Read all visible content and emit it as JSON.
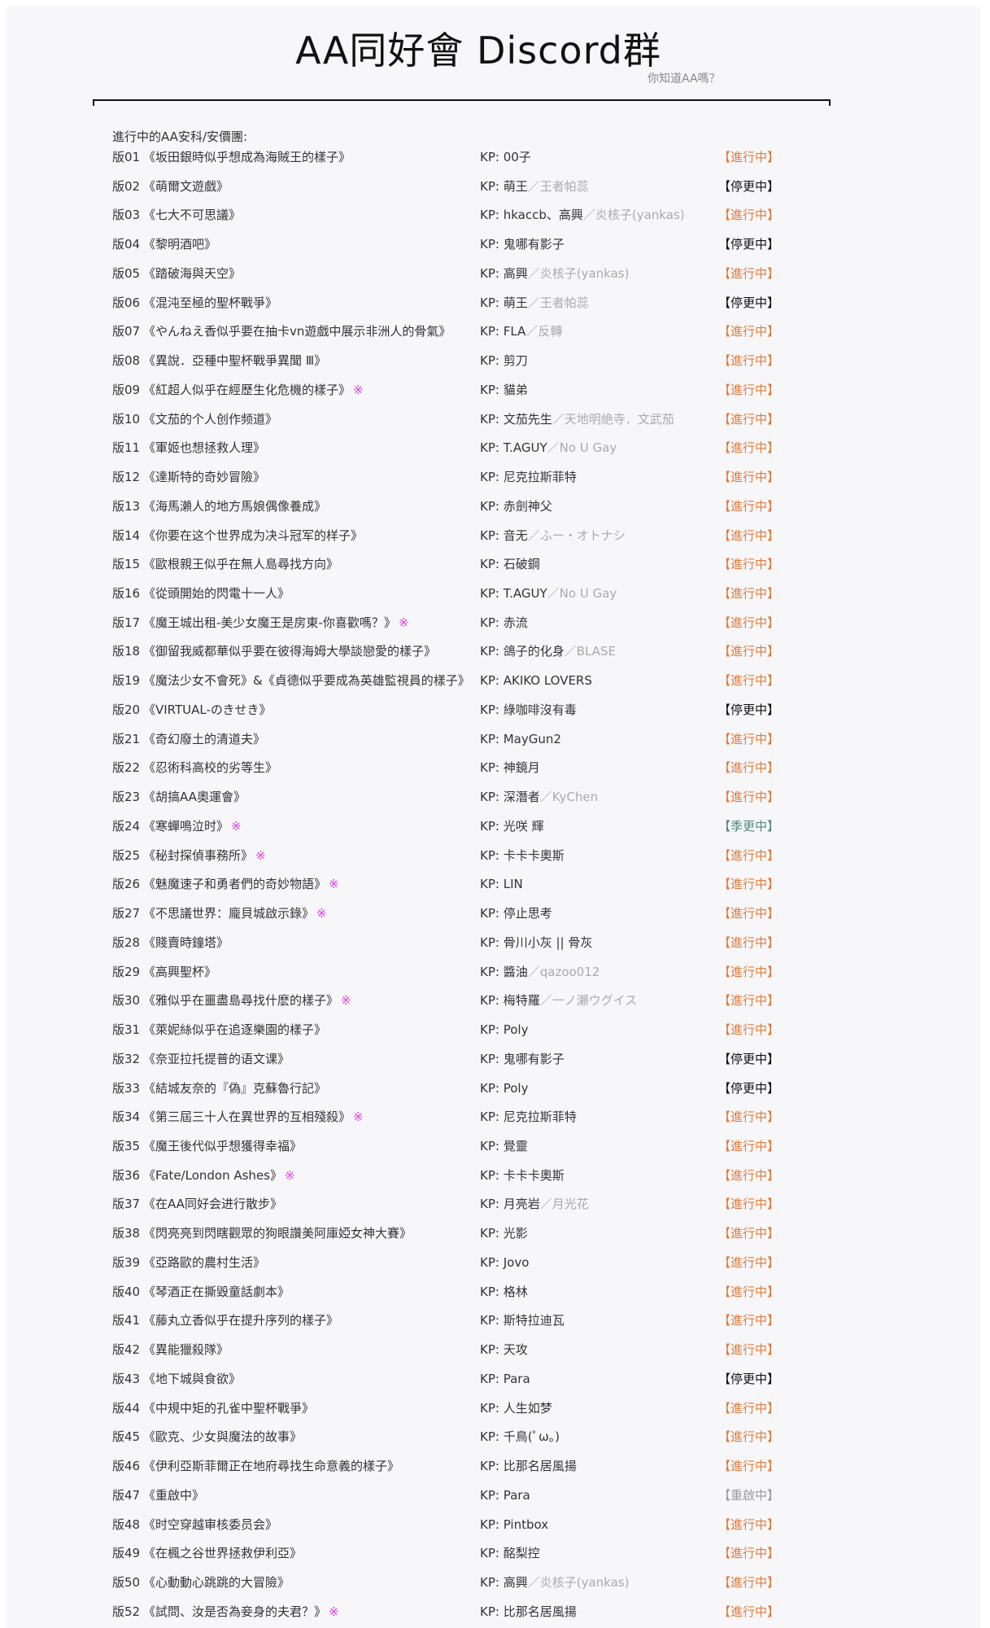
{
  "header": {
    "title": "AA同好會 Discord群",
    "subtitle": "你知道AA嗎？"
  },
  "section_label": "進行中的AA安科/安價團:",
  "kp_prefix": "KP: ",
  "status_colors": {
    "進行中": "#e27a3a",
    "停更中": "#111111",
    "季更中": "#4f8a78",
    "重啟中": "#999999"
  },
  "mark_icon": "reference-mark",
  "rows": [
    {
      "num": "版01",
      "title": "《坂田銀時似乎想成為海賊王的樣子》",
      "mark": "",
      "kp": "00子",
      "kp_alt": "",
      "status": "【進行中】",
      "status_key": "進行中"
    },
    {
      "num": "版02",
      "title": "《萌爾文遊戲》",
      "mark": "",
      "kp": "萌王",
      "kp_alt": "／王者帕蕊",
      "status": "【停更中】",
      "status_key": "停更中"
    },
    {
      "num": "版03",
      "title": "《七大不可思議》",
      "mark": "",
      "kp": "hkaccb、高興",
      "kp_alt": "／炎核子(yankas)",
      "status": "【進行中】",
      "status_key": "進行中"
    },
    {
      "num": "版04",
      "title": "《黎明酒吧》",
      "mark": "",
      "kp": "鬼哪有影子",
      "kp_alt": "",
      "status": "【停更中】",
      "status_key": "停更中"
    },
    {
      "num": "版05",
      "title": "《踏破海與天空》",
      "mark": "",
      "kp": "高興",
      "kp_alt": "／炎核子(yankas)",
      "status": "【進行中】",
      "status_key": "進行中"
    },
    {
      "num": "版06",
      "title": "《混沌至極的聖杯戰爭》",
      "mark": "",
      "kp": "萌王",
      "kp_alt": "／王者帕蕊",
      "status": "【停更中】",
      "status_key": "停更中"
    },
    {
      "num": "版07",
      "title": "《やんねえ香似乎要在抽卡vn遊戲中展示非洲人的骨氣》",
      "mark": "",
      "kp": "FLA",
      "kp_alt": "／反轉",
      "status": "【進行中】",
      "status_key": "進行中"
    },
    {
      "num": "版08",
      "title": "《異說．亞種中聖杯戰爭異聞 Ⅲ》",
      "mark": "",
      "kp": "剪刀",
      "kp_alt": "",
      "status": "【進行中】",
      "status_key": "進行中"
    },
    {
      "num": "版09",
      "title": "《紅超人似乎在經歷生化危機的樣子》",
      "mark": "※",
      "kp": "貓弟",
      "kp_alt": "",
      "status": "【進行中】",
      "status_key": "進行中"
    },
    {
      "num": "版10",
      "title": "《文茄的个人创作频道》",
      "mark": "",
      "kp": "文茄先生",
      "kp_alt": "／天地明絶寺．文武茄",
      "status": "【進行中】",
      "status_key": "進行中"
    },
    {
      "num": "版11",
      "title": "《軍姬也想拯救人理》",
      "mark": "",
      "kp": "T.AGUY",
      "kp_alt": "／No U Gay",
      "status": "【進行中】",
      "status_key": "進行中"
    },
    {
      "num": "版12",
      "title": "《達斯特的奇妙冒險》",
      "mark": "",
      "kp": "尼克拉斯菲特",
      "kp_alt": "",
      "status": "【進行中】",
      "status_key": "進行中"
    },
    {
      "num": "版13",
      "title": "《海馬瀨人的地方馬娘偶像養成》",
      "mark": "",
      "kp": "赤劍神父",
      "kp_alt": "",
      "status": "【進行中】",
      "status_key": "進行中"
    },
    {
      "num": "版14",
      "title": "《你要在这个世界成为决斗冠军的样子》",
      "mark": "",
      "kp": "音无",
      "kp_alt": "／ふー・オトナシ",
      "status": "【進行中】",
      "status_key": "進行中"
    },
    {
      "num": "版15",
      "title": "《歐根親王似乎在無人島尋找方向》",
      "mark": "",
      "kp": "石破鋼",
      "kp_alt": "",
      "status": "【進行中】",
      "status_key": "進行中"
    },
    {
      "num": "版16",
      "title": "《從頭開始的閃電十一人》",
      "mark": "",
      "kp": "T.AGUY",
      "kp_alt": "／No U Gay",
      "status": "【進行中】",
      "status_key": "進行中"
    },
    {
      "num": "版17",
      "title": "《魔王城出租-美少女魔王是房東-你喜歡嗎？》",
      "mark": "※",
      "kp": "赤流",
      "kp_alt": "",
      "status": "【進行中】",
      "status_key": "進行中"
    },
    {
      "num": "版18",
      "title": "《御留我威都華似乎要在彼得海姆大學談戀愛的樣子》",
      "mark": "",
      "kp": "鴿子的化身",
      "kp_alt": "／BLASE",
      "status": "【進行中】",
      "status_key": "進行中"
    },
    {
      "num": "版19",
      "title": "《魔法少女不會死》&《貞德似乎要成為英雄監視員的樣子》",
      "mark": "",
      "kp": "AKIKO LOVERS",
      "kp_alt": "",
      "status": "【進行中】",
      "status_key": "進行中"
    },
    {
      "num": "版20",
      "title": "《VIRTUAL-のきせき》",
      "mark": "",
      "kp": "綠咖啡沒有毒",
      "kp_alt": "",
      "status": "【停更中】",
      "status_key": "停更中"
    },
    {
      "num": "版21",
      "title": "《奇幻廢土的清道夫》",
      "mark": "",
      "kp": "MayGun2",
      "kp_alt": "",
      "status": "【進行中】",
      "status_key": "進行中"
    },
    {
      "num": "版22",
      "title": "《忍術科高校的劣等生》",
      "mark": "",
      "kp": "神鏡月",
      "kp_alt": "",
      "status": "【進行中】",
      "status_key": "進行中"
    },
    {
      "num": "版23",
      "title": "《胡搞AA奧運會》",
      "mark": "",
      "kp": "深潛者",
      "kp_alt": "／KyChen",
      "status": "【進行中】",
      "status_key": "進行中"
    },
    {
      "num": "版24",
      "title": "《寒蟬鳴泣时》",
      "mark": "※",
      "kp": "光咲 輝",
      "kp_alt": "",
      "status": "【季更中】",
      "status_key": "季更中"
    },
    {
      "num": "版25",
      "title": "《秘封探偵事務所》",
      "mark": "※",
      "kp": "卡卡卡奧斯",
      "kp_alt": "",
      "status": "【進行中】",
      "status_key": "進行中"
    },
    {
      "num": "版26",
      "title": "《魅魔速子和勇者們的奇妙物語》",
      "mark": "※",
      "kp": "LIN",
      "kp_alt": "",
      "status": "【進行中】",
      "status_key": "進行中"
    },
    {
      "num": "版27",
      "title": "《不思議世界：龐貝城啟示錄》",
      "mark": "※",
      "kp": "停止思考",
      "kp_alt": "",
      "status": "【進行中】",
      "status_key": "進行中"
    },
    {
      "num": "版28",
      "title": "《賤賣時鐘塔》",
      "mark": "",
      "kp": "骨川小灰 || 骨灰",
      "kp_alt": "",
      "status": "【進行中】",
      "status_key": "進行中"
    },
    {
      "num": "版29",
      "title": "《高興聖杯》",
      "mark": "",
      "kp": "醬油",
      "kp_alt": "／qazoo012",
      "status": "【進行中】",
      "status_key": "進行中"
    },
    {
      "num": "版30",
      "title": "《雅似乎在噩盡島尋找什麽的樣子》",
      "mark": "※",
      "kp": "梅特羅",
      "kp_alt": "／一ノ瀬ウグイス",
      "status": "【進行中】",
      "status_key": "進行中"
    },
    {
      "num": "版31",
      "title": "《萊妮絲似乎在追逐樂園的樣子》",
      "mark": "",
      "kp": "Poly",
      "kp_alt": "",
      "status": "【進行中】",
      "status_key": "進行中"
    },
    {
      "num": "版32",
      "title": "《奈亚拉托提普的语文课》",
      "mark": "",
      "kp": "鬼哪有影子",
      "kp_alt": "",
      "status": "【停更中】",
      "status_key": "停更中"
    },
    {
      "num": "版33",
      "title": "《結城友奈的『偽』克蘇魯行記》",
      "mark": "",
      "kp": "Poly",
      "kp_alt": "",
      "status": "【停更中】",
      "status_key": "停更中"
    },
    {
      "num": "版34",
      "title": "《第三屆三十人在異世界的互相殘殺》",
      "mark": "※",
      "kp": "尼克拉斯菲特",
      "kp_alt": "",
      "status": "【進行中】",
      "status_key": "進行中"
    },
    {
      "num": "版35",
      "title": "《魔王後代似乎想獲得幸福》",
      "mark": "",
      "kp": "覺靈",
      "kp_alt": "",
      "status": "【進行中】",
      "status_key": "進行中"
    },
    {
      "num": "版36",
      "title": "《Fate/London Ashes》",
      "mark": "※",
      "kp": "卡卡卡奧斯",
      "kp_alt": "",
      "status": "【進行中】",
      "status_key": "進行中"
    },
    {
      "num": "版37",
      "title": "《在AA同好会进行散步》",
      "mark": "",
      "kp": "月亮岩",
      "kp_alt": "／月光花",
      "status": "【進行中】",
      "status_key": "進行中"
    },
    {
      "num": "版38",
      "title": "《閃亮亮到閃瞎觀眾的狗眼讚美阿庫婭女神大賽》",
      "mark": "",
      "kp": "光影",
      "kp_alt": "",
      "status": "【進行中】",
      "status_key": "進行中"
    },
    {
      "num": "版39",
      "title": "《亞路歐的農村生活》",
      "mark": "",
      "kp": "Jovo",
      "kp_alt": "",
      "status": "【進行中】",
      "status_key": "進行中"
    },
    {
      "num": "版40",
      "title": "《琴酒正在撕毀童話劇本》",
      "mark": "",
      "kp": "格林",
      "kp_alt": "",
      "status": "【進行中】",
      "status_key": "進行中"
    },
    {
      "num": "版41",
      "title": "《藤丸立香似乎在提升序列的樣子》",
      "mark": "",
      "kp": "斯特拉迪瓦",
      "kp_alt": "",
      "status": "【進行中】",
      "status_key": "進行中"
    },
    {
      "num": "版42",
      "title": "《異能獵殺隊》",
      "mark": "",
      "kp": "天攻",
      "kp_alt": "",
      "status": "【進行中】",
      "status_key": "進行中"
    },
    {
      "num": "版43",
      "title": "《地下城與食欲》",
      "mark": "",
      "kp": "Para",
      "kp_alt": "",
      "status": "【停更中】",
      "status_key": "停更中"
    },
    {
      "num": "版44",
      "title": "《中規中矩的孔雀中聖杯戰爭》",
      "mark": "",
      "kp": "人生如梦",
      "kp_alt": "",
      "status": "【進行中】",
      "status_key": "進行中"
    },
    {
      "num": "版45",
      "title": "《歐克、少女與魔法的故事》",
      "mark": "",
      "kp": "千鳥(ﾟω。)",
      "kp_alt": "",
      "status": "【進行中】",
      "status_key": "進行中"
    },
    {
      "num": "版46",
      "title": "《伊利亞斯菲爾正在地府尋找生命意義的樣子》",
      "mark": "",
      "kp": "比那名居風揚",
      "kp_alt": "",
      "status": "【進行中】",
      "status_key": "進行中"
    },
    {
      "num": "版47",
      "title": "《重啟中》",
      "mark": "",
      "kp": "Para",
      "kp_alt": "",
      "status": "【重啟中】",
      "status_key": "重啟中"
    },
    {
      "num": "版48",
      "title": "《时空穿越审核委员会》",
      "mark": "",
      "kp": "Pintbox",
      "kp_alt": "",
      "status": "【進行中】",
      "status_key": "進行中"
    },
    {
      "num": "版49",
      "title": "《在楓之谷世界拯救伊利亞》",
      "mark": "",
      "kp": "酩梨控",
      "kp_alt": "",
      "status": "【進行中】",
      "status_key": "進行中"
    },
    {
      "num": "版50",
      "title": "《心動動心跳跳的大冒險》",
      "mark": "",
      "kp": "高興",
      "kp_alt": "／炎核子(yankas)",
      "status": "【進行中】",
      "status_key": "進行中"
    },
    {
      "num": "版52",
      "title": "《試問、汝是否為妾身的夫君？》",
      "mark": "※",
      "kp": "比那名居風揚",
      "kp_alt": "",
      "status": "【進行中】",
      "status_key": "進行中"
    }
  ]
}
